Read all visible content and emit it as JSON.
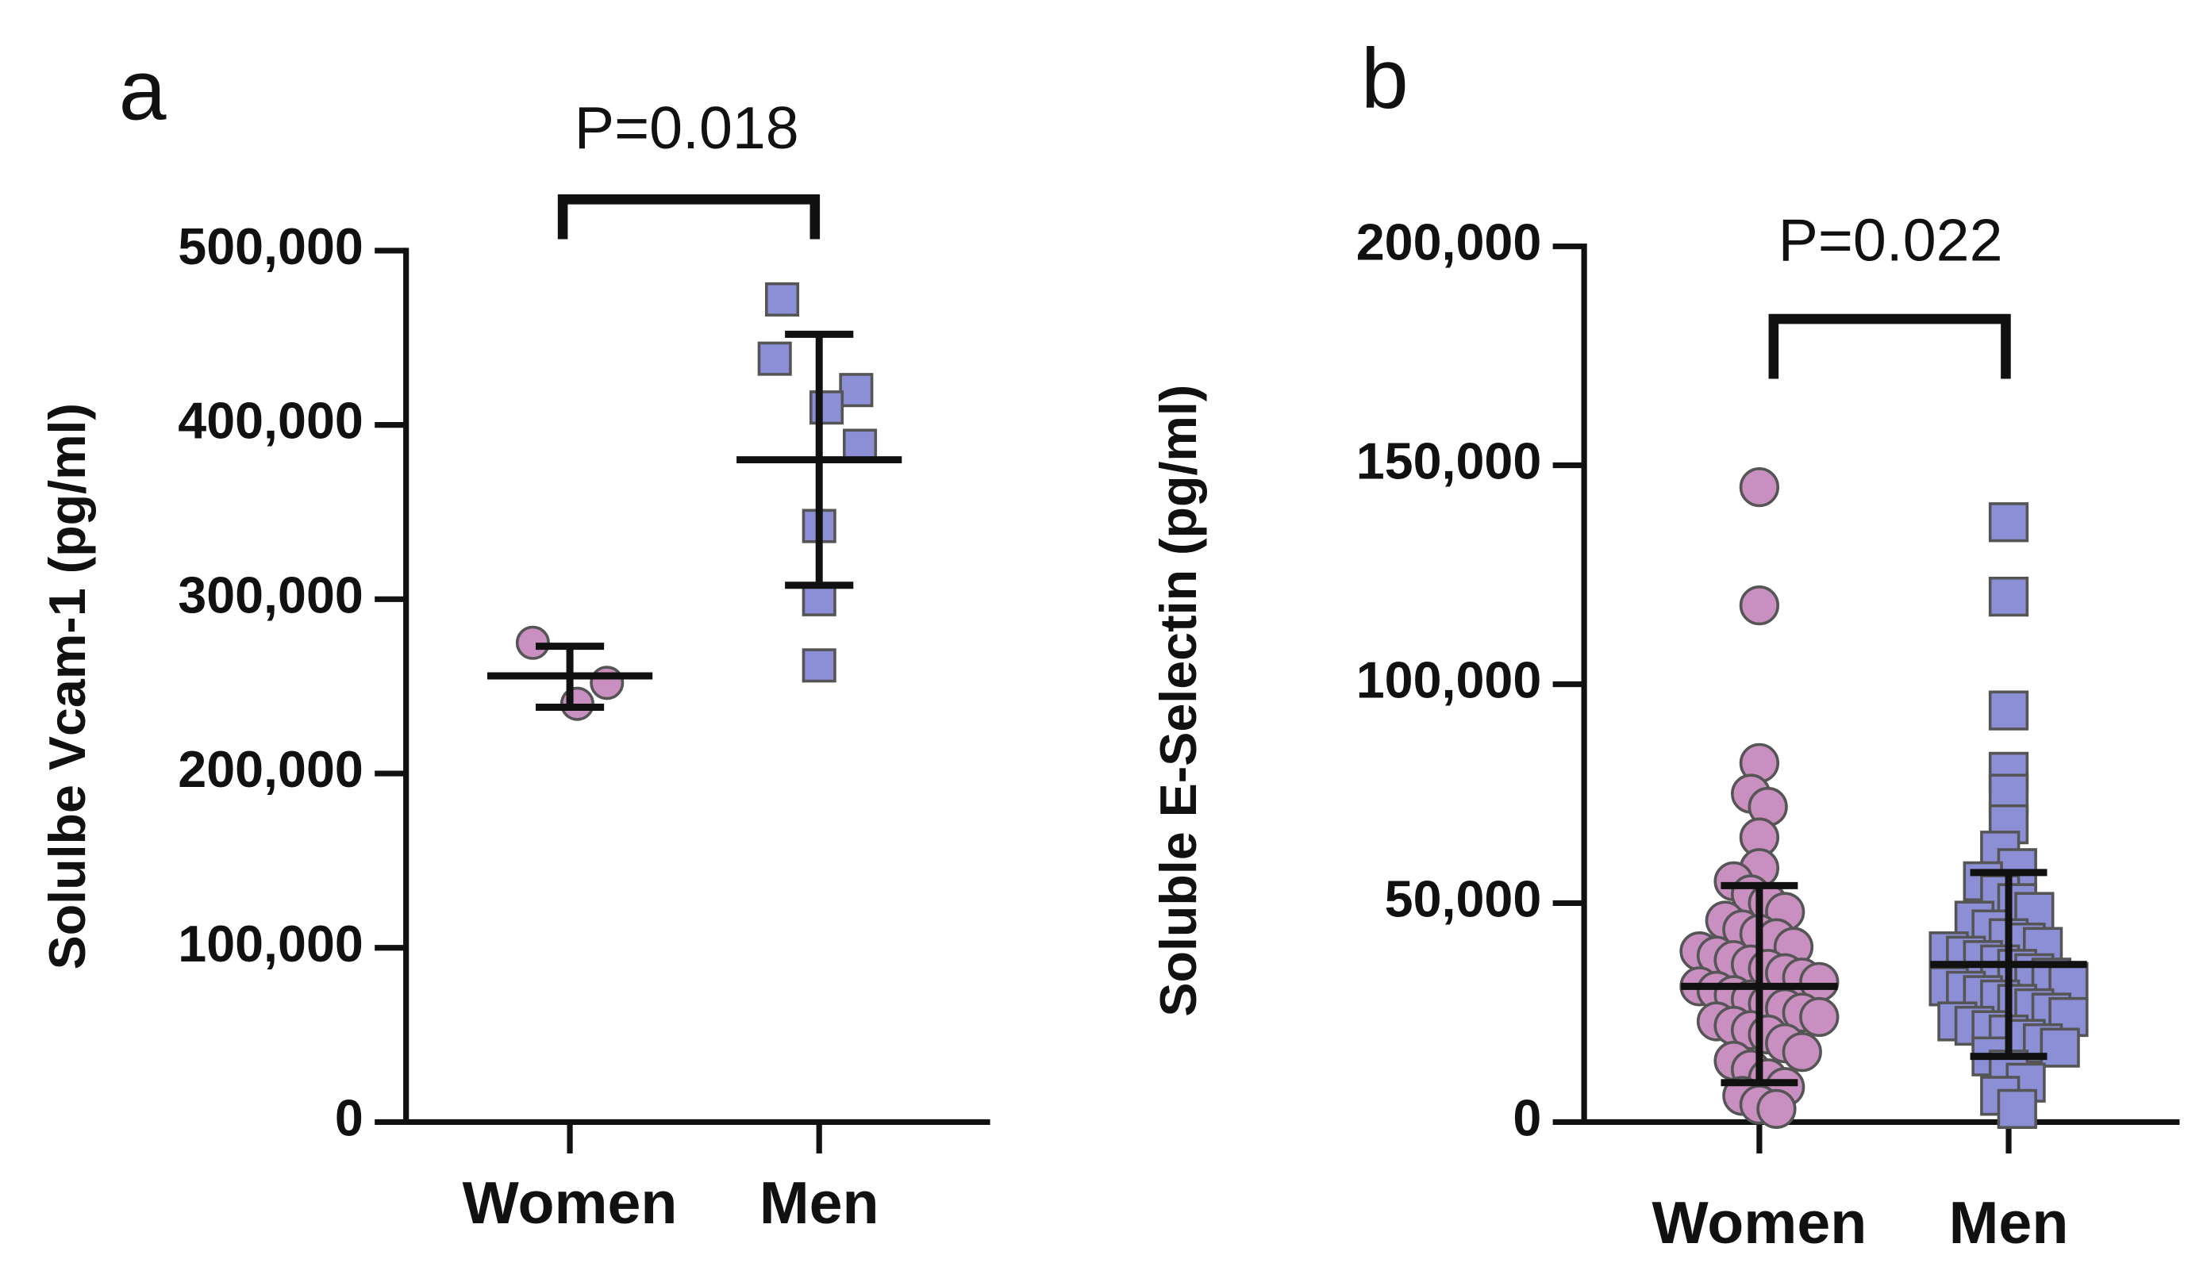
{
  "chart_data": [
    {
      "type": "dot",
      "panel_label": "a",
      "annotation": "P=0.018",
      "ylabel": "Solulbe Vcam-1 (pg/ml)",
      "categories": [
        "Women",
        "Men"
      ],
      "colors": [
        "#c98fc0",
        "#8c8fd6"
      ],
      "markers": [
        "circle",
        "square"
      ],
      "points": [
        [
          275000,
          252000,
          240000
        ],
        [
          472000,
          420000,
          410000,
          438000,
          388000,
          342000,
          300000,
          262000
        ]
      ],
      "means": [
        256000,
        380000
      ],
      "sd_upper": [
        273000,
        452000
      ],
      "sd_lower": [
        238000,
        308000
      ],
      "ylim": [
        0,
        500000
      ],
      "yticks": [
        0,
        {
          "value": 100000,
          "label": "100,000"
        },
        {
          "value": 200000,
          "label": "200,000"
        },
        {
          "value": 300000,
          "label": "300,000"
        },
        {
          "value": 400000,
          "label": "400,000"
        },
        {
          "value": 500000,
          "label": "500,000"
        }
      ]
    },
    {
      "type": "dot",
      "panel_label": "b",
      "annotation": "P=0.022",
      "ylabel": "Soluble E-Selectin (pg/ml)",
      "categories": [
        "Women",
        "Men"
      ],
      "colors": [
        "#c98fc0",
        "#8c8fd6"
      ],
      "markers": [
        "circle",
        "square"
      ],
      "points": [
        [
          145000,
          118000,
          82000,
          75000,
          72000,
          65000,
          58000,
          55000,
          52000,
          50000,
          48000,
          46000,
          44000,
          43000,
          42000,
          40000,
          39000,
          38000,
          37000,
          36000,
          35000,
          34000,
          33000,
          32000,
          31000,
          30000,
          29000,
          28000,
          27000,
          26000,
          25000,
          24000,
          23000,
          22000,
          21000,
          20000,
          18000,
          16000,
          14000,
          12000,
          10000,
          8000,
          6000,
          4000,
          3000
        ],
        [
          137000,
          120000,
          94000,
          80000,
          75000,
          68000,
          62000,
          58000,
          55000,
          52000,
          50000,
          48000,
          46000,
          44000,
          42000,
          41000,
          40000,
          39000,
          38000,
          37000,
          36000,
          35000,
          34000,
          33000,
          32000,
          31000,
          30000,
          29000,
          28000,
          27000,
          26000,
          25000,
          24000,
          23000,
          22000,
          21000,
          20000,
          19000,
          18000,
          17000,
          15000,
          12000,
          9000,
          6000,
          3000
        ]
      ],
      "means": [
        31000,
        36000
      ],
      "sd_upper": [
        54000,
        57000
      ],
      "sd_lower": [
        9000,
        15000
      ],
      "ylim": [
        0,
        200000
      ],
      "yticks": [
        0,
        {
          "value": 50000,
          "label": "50,000"
        },
        {
          "value": 100000,
          "label": "100,000"
        },
        {
          "value": 150000,
          "label": "150,000"
        },
        {
          "value": 200000,
          "label": "200,000"
        }
      ]
    }
  ]
}
